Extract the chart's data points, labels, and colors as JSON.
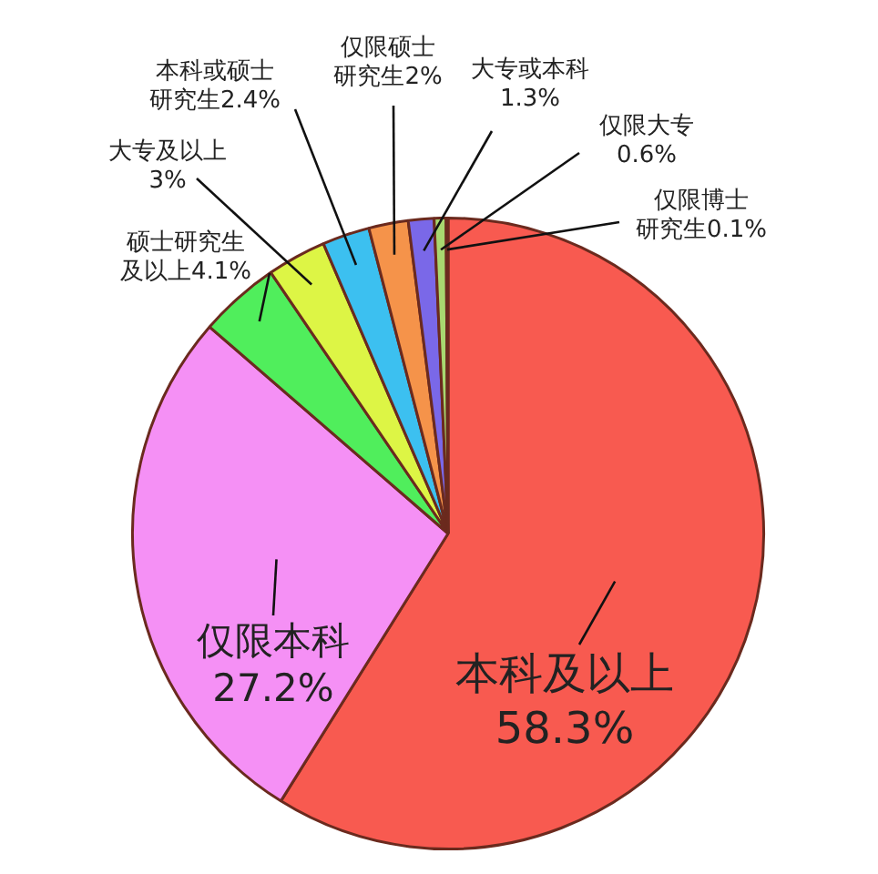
{
  "chart_data": {
    "type": "pie",
    "categories": [
      "本科及以上",
      "仅限本科",
      "硕士研究生及以上",
      "大专及以上",
      "本科或硕士研究生",
      "仅限硕士研究生",
      "大专或本科",
      "仅限大专",
      "仅限博士研究生"
    ],
    "values": [
      58.3,
      27.2,
      4.1,
      3,
      2.4,
      2,
      1.3,
      0.6,
      0.1
    ],
    "value_labels": [
      "58.3%",
      "27.2%",
      "4.1%",
      "3%",
      "2.4%",
      "2%",
      "1.3%",
      "0.6%",
      "0.1%"
    ],
    "colors": [
      "#f85a50",
      "#f590f5",
      "#50ee5c",
      "#ddf545",
      "#3cc0f0",
      "#f5934a",
      "#7a68e8",
      "#a8d870",
      "#c8e8a0"
    ],
    "legend": false
  }
}
